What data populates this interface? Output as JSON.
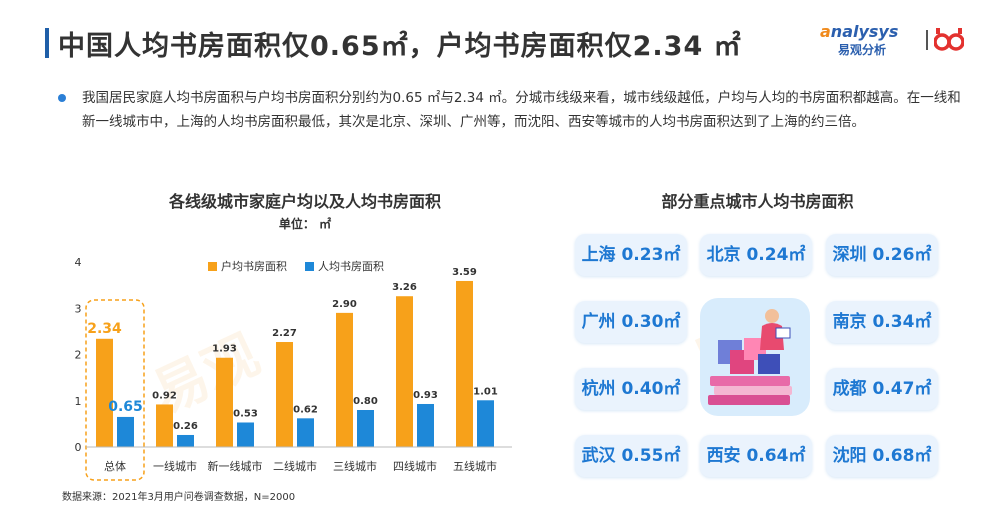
{
  "header": {
    "title": "中国人均书房面积仅0.65㎡，户均书房面积仅2.34 ㎡",
    "logo_text": "nalysys",
    "logo_cn": "易观分析"
  },
  "summary": "我国居民家庭人均书房面积与户均书房面积分别约为0.65 ㎡与2.34 ㎡。分城市线级来看，城市线级越低，户均与人均的书房面积都越高。在一线和新一线城市中，上海的人均书房面积最低，其次是北京、深圳、广州等，而沈阳、西安等城市的人均书房面积达到了上海的约三倍。",
  "left_chart": {
    "title": "各线级城市家庭户均以及人均书房面积",
    "unit": "单位： ㎡",
    "source": "数据来源：2021年3月用户问卷调查数据，N=2000"
  },
  "right_panel": {
    "title": "部分重点城市人均书房面积",
    "cities": [
      {
        "label": "上海 0.23㎡"
      },
      {
        "label": "北京 0.24㎡"
      },
      {
        "label": "深圳 0.26㎡"
      },
      {
        "label": "广州 0.30㎡"
      },
      {
        "label": "南京 0.34㎡"
      },
      {
        "label": "杭州 0.40㎡"
      },
      {
        "label": "成都 0.47㎡"
      },
      {
        "label": "武汉 0.55㎡"
      },
      {
        "label": "西安 0.64㎡"
      },
      {
        "label": "沈阳 0.68㎡"
      }
    ]
  },
  "colors": {
    "orange": "#f7a11a",
    "blue": "#1e88d8",
    "title_bar": "#1f5fa8",
    "card_text": "#1e78d2"
  },
  "chart_data": {
    "type": "bar",
    "categories": [
      "总体",
      "一线城市",
      "新一线城市",
      "二线城市",
      "三线城市",
      "四线城市",
      "五线城市"
    ],
    "series": [
      {
        "name": "户均书房面积",
        "values": [
          2.34,
          0.92,
          1.93,
          2.27,
          2.9,
          3.26,
          3.59
        ]
      },
      {
        "name": "人均书房面积",
        "values": [
          0.65,
          0.26,
          0.53,
          0.62,
          0.8,
          0.93,
          1.01
        ]
      }
    ],
    "ylim": [
      0,
      4
    ],
    "yticks": [
      0,
      1,
      2,
      3,
      4
    ],
    "legend": "top",
    "grid": false,
    "highlight_category": "总体"
  }
}
